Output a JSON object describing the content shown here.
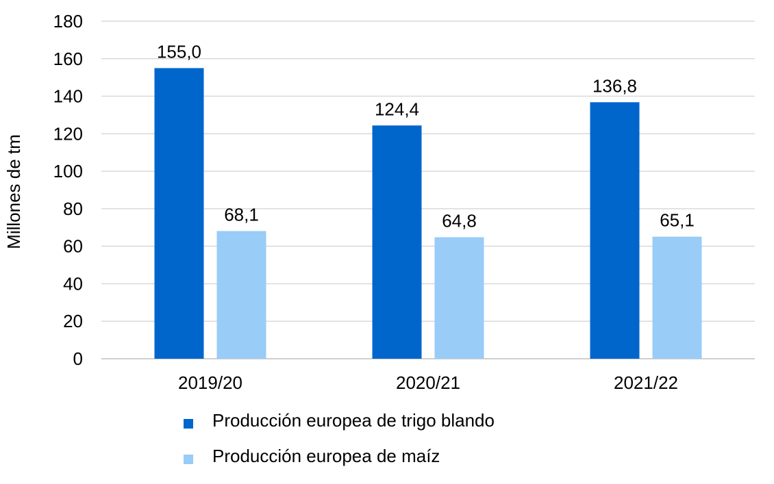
{
  "chart_data": {
    "type": "bar",
    "title": "",
    "xlabel": "",
    "ylabel": "Millones de tm",
    "ylim": [
      0,
      180
    ],
    "yticks": [
      0,
      20,
      40,
      60,
      80,
      100,
      120,
      140,
      160,
      180
    ],
    "grid": true,
    "legend_placement": "bottom",
    "categories": [
      "2019/20",
      "2020/21",
      "2021/22"
    ],
    "series": [
      {
        "name": "Producción europea de trigo blando",
        "color": "#0066CC",
        "values": [
          155.0,
          124.4,
          136.8
        ],
        "labels": [
          "155,0",
          "124,4",
          "136,8"
        ]
      },
      {
        "name": "Producción europea de maíz",
        "color": "#99CCF7",
        "values": [
          68.1,
          64.8,
          65.1
        ],
        "labels": [
          "68,1",
          "64,8",
          "65,1"
        ]
      }
    ]
  }
}
